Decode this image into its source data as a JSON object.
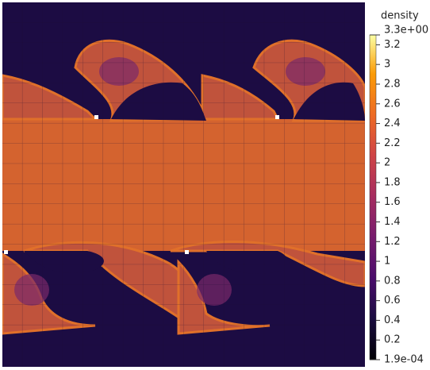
{
  "colorbar": {
    "title": "density",
    "clim": [
      {
        "value": 0.00019,
        "label": "1.9e-04"
      },
      {
        "value": 3.3,
        "label": "3.3e+00"
      }
    ],
    "ticks": [
      0.2,
      0.4,
      0.6,
      0.8,
      1,
      1.2,
      1.4,
      1.6,
      1.8,
      2,
      2.2,
      2.4,
      2.6,
      2.8,
      3,
      3.2
    ]
  }
}
